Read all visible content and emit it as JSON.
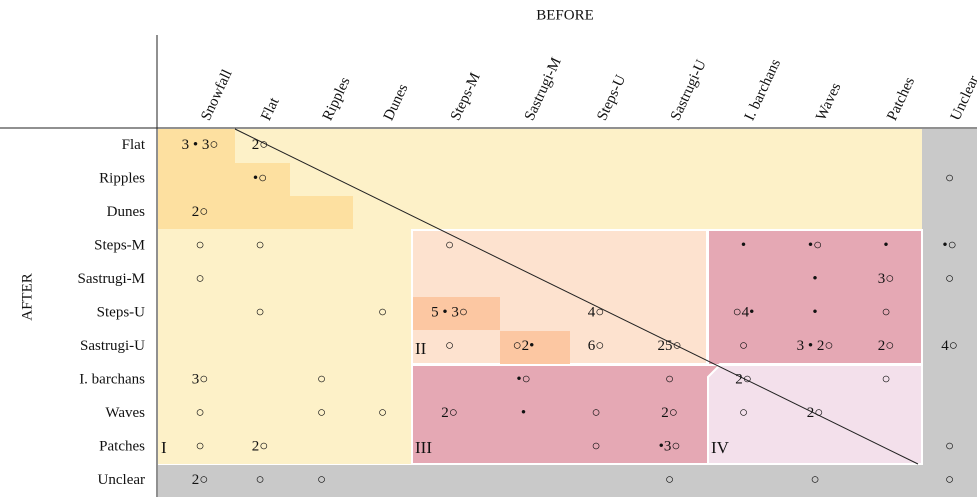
{
  "top_label": "BEFORE",
  "side_label": "AFTER",
  "columns": [
    "Snowfall",
    "Flat",
    "Ripples",
    "Dunes",
    "Steps-M",
    "Sastrugi-M",
    "Steps-U",
    "Sastrugi-U",
    "I. barchans",
    "Waves",
    "Patches",
    "Unclear"
  ],
  "rows": [
    {
      "label": "Flat",
      "cells": [
        "3 • 3○",
        "2○",
        null,
        null,
        null,
        null,
        null,
        null,
        null,
        null,
        null,
        null
      ]
    },
    {
      "label": "Ripples",
      "cells": [
        null,
        "•○",
        null,
        null,
        null,
        null,
        null,
        null,
        null,
        null,
        null,
        "○"
      ]
    },
    {
      "label": "Dunes",
      "cells": [
        "2○",
        null,
        null,
        null,
        null,
        null,
        null,
        null,
        null,
        null,
        null,
        null
      ]
    },
    {
      "label": "Steps-M",
      "cells": [
        "○",
        "○",
        null,
        null,
        "○",
        null,
        null,
        null,
        "•",
        "•○",
        "•",
        "•○"
      ]
    },
    {
      "label": "Sastrugi-M",
      "cells": [
        "○",
        null,
        null,
        null,
        null,
        null,
        null,
        null,
        null,
        "•",
        "3○",
        "○"
      ]
    },
    {
      "label": "Steps-U",
      "cells": [
        null,
        "○",
        null,
        "○",
        "5 • 3○",
        null,
        "4○",
        null,
        "○4•",
        "•",
        "○",
        null
      ]
    },
    {
      "label": "Sastrugi-U",
      "cells": [
        null,
        null,
        null,
        null,
        "○",
        "○2•",
        "6○",
        "25○",
        "○",
        "3 • 2○",
        "2○",
        "4○"
      ]
    },
    {
      "label": "I. barchans",
      "cells": [
        "3○",
        null,
        "○",
        null,
        null,
        "•○",
        null,
        "○",
        "2○",
        null,
        "○",
        null
      ]
    },
    {
      "label": "Waves",
      "cells": [
        "○",
        null,
        "○",
        "○",
        "2○",
        "•",
        "○",
        "2○",
        "○",
        "2○",
        null,
        null
      ]
    },
    {
      "label": "Patches",
      "cells": [
        "○",
        "2○",
        null,
        null,
        null,
        null,
        "○",
        "•3○",
        null,
        null,
        null,
        "○"
      ]
    },
    {
      "label": "Unclear",
      "cells": [
        "2○",
        "○",
        "○",
        null,
        null,
        null,
        null,
        "○",
        null,
        "○",
        null,
        "○"
      ]
    }
  ],
  "regions": [
    "I",
    "II",
    "III",
    "IV"
  ]
}
